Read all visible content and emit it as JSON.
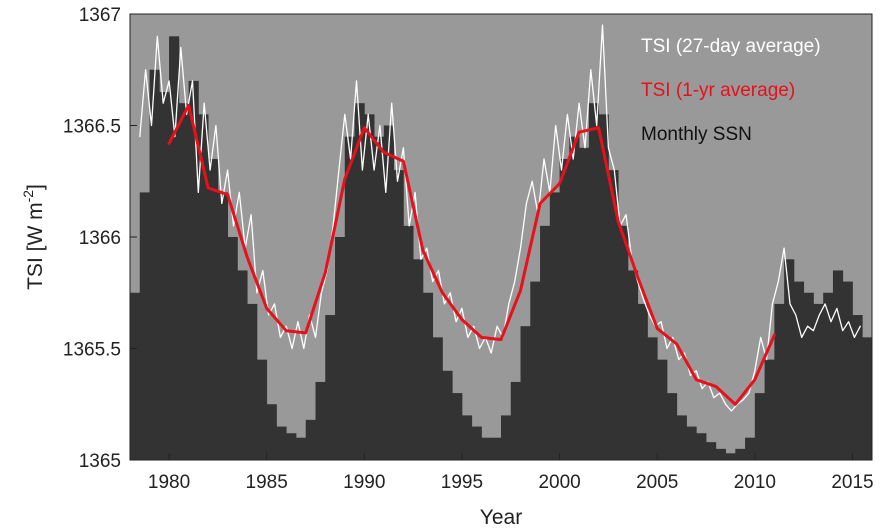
{
  "chart_data": {
    "type": "line",
    "xlabel": "Year",
    "ylabel": "TSI [W m",
    "ylabel_superscript": "-2",
    "ylabel_close": "]",
    "xlim": [
      1978,
      2016
    ],
    "ylim": [
      1365,
      1367
    ],
    "xticks": [
      1980,
      1985,
      1990,
      1995,
      2000,
      2005,
      2010,
      2015
    ],
    "yticks": [
      1365,
      1365.5,
      1366,
      1366.5,
      1367
    ],
    "xtick_labels": [
      "1980",
      "1985",
      "1990",
      "1995",
      "2000",
      "2005",
      "2010",
      "2015"
    ],
    "ytick_labels": [
      "1365",
      "1365.5",
      "1366",
      "1366.5",
      "1367"
    ],
    "legend_position": "top-right",
    "grid": false,
    "colors": {
      "background": "#999999",
      "ssn": "#333333",
      "tsi27": "#ffffff",
      "tsi1yr": "#e8101a"
    },
    "series": [
      {
        "name": "TSI (27-day average)",
        "style": "thin-line",
        "x": [
          1978.5,
          1978.8,
          1979.1,
          1979.4,
          1979.7,
          1980.0,
          1980.3,
          1980.6,
          1980.9,
          1981.2,
          1981.5,
          1981.8,
          1982.1,
          1982.4,
          1982.7,
          1983.0,
          1983.3,
          1983.6,
          1983.9,
          1984.2,
          1984.5,
          1984.8,
          1985.1,
          1985.4,
          1985.7,
          1986.0,
          1986.3,
          1986.6,
          1986.9,
          1987.2,
          1987.5,
          1987.8,
          1988.1,
          1988.4,
          1988.7,
          1989.0,
          1989.3,
          1989.6,
          1989.9,
          1990.2,
          1990.5,
          1990.8,
          1991.1,
          1991.4,
          1991.7,
          1992.0,
          1992.3,
          1992.6,
          1992.9,
          1993.2,
          1993.5,
          1993.8,
          1994.1,
          1994.4,
          1994.7,
          1995.0,
          1995.3,
          1995.6,
          1995.9,
          1996.2,
          1996.5,
          1996.8,
          1997.1,
          1997.4,
          1997.7,
          1998.0,
          1998.3,
          1998.6,
          1998.9,
          1999.2,
          1999.5,
          1999.8,
          2000.1,
          2000.4,
          2000.7,
          2001.0,
          2001.3,
          2001.6,
          2001.9,
          2002.2,
          2002.5,
          2002.8,
          2003.1,
          2003.4,
          2003.7,
          2004.0,
          2004.3,
          2004.6,
          2004.9,
          2005.2,
          2005.5,
          2005.8,
          2006.1,
          2006.4,
          2006.7,
          2007.0,
          2007.3,
          2007.6,
          2007.9,
          2008.2,
          2008.5,
          2008.8,
          2009.1,
          2009.4,
          2009.7,
          2010.0,
          2010.3,
          2010.6,
          2010.9,
          2011.2,
          2011.5,
          2011.8,
          2012.1,
          2012.4,
          2012.7,
          2013.0,
          2013.3,
          2013.6,
          2013.9,
          2014.2,
          2014.5,
          2014.8,
          2015.1,
          2015.4
        ],
        "values": [
          1366.45,
          1366.75,
          1366.5,
          1366.9,
          1366.6,
          1366.7,
          1366.45,
          1366.85,
          1366.55,
          1366.7,
          1366.2,
          1366.6,
          1366.3,
          1366.5,
          1366.15,
          1366.3,
          1366.05,
          1366.2,
          1365.95,
          1366.1,
          1365.75,
          1365.85,
          1365.65,
          1365.7,
          1365.55,
          1365.6,
          1365.5,
          1365.62,
          1365.5,
          1365.65,
          1365.55,
          1365.75,
          1365.85,
          1366.05,
          1366.3,
          1366.55,
          1366.35,
          1366.7,
          1366.3,
          1366.55,
          1366.3,
          1366.5,
          1366.2,
          1366.6,
          1366.25,
          1366.4,
          1366.05,
          1366.2,
          1365.9,
          1365.95,
          1365.8,
          1365.85,
          1365.7,
          1365.75,
          1365.62,
          1365.68,
          1365.55,
          1365.6,
          1365.5,
          1365.55,
          1365.48,
          1365.6,
          1365.55,
          1365.7,
          1365.8,
          1365.95,
          1366.15,
          1366.25,
          1366.1,
          1366.35,
          1366.2,
          1366.5,
          1366.3,
          1366.55,
          1366.35,
          1366.6,
          1366.4,
          1366.75,
          1366.5,
          1366.95,
          1366.4,
          1366.3,
          1366.05,
          1366.1,
          1365.9,
          1365.8,
          1365.72,
          1365.65,
          1365.6,
          1365.62,
          1365.5,
          1365.55,
          1365.45,
          1365.48,
          1365.38,
          1365.4,
          1365.32,
          1365.35,
          1365.28,
          1365.3,
          1365.25,
          1365.22,
          1365.25,
          1365.27,
          1365.3,
          1365.4,
          1365.55,
          1365.45,
          1365.7,
          1365.8,
          1365.95,
          1365.7,
          1365.65,
          1365.55,
          1365.6,
          1365.58,
          1365.65,
          1365.7,
          1365.62,
          1365.68,
          1365.58,
          1365.62,
          1365.55,
          1365.6
        ]
      },
      {
        "name": "TSI (1-yr average)",
        "style": "thick-line",
        "x": [
          1980,
          1981,
          1982,
          1983,
          1984,
          1985,
          1986,
          1987,
          1988,
          1989,
          1990,
          1991,
          1992,
          1993,
          1994,
          1995,
          1996,
          1997,
          1998,
          1999,
          2000,
          2001,
          2002,
          2003,
          2004,
          2005,
          2006,
          2007,
          2008,
          2009,
          2010,
          2011
        ],
        "values": [
          1366.42,
          1366.59,
          1366.22,
          1366.19,
          1365.91,
          1365.68,
          1365.58,
          1365.57,
          1365.84,
          1366.26,
          1366.49,
          1366.38,
          1366.34,
          1365.94,
          1365.75,
          1365.63,
          1365.55,
          1365.54,
          1365.76,
          1366.15,
          1366.24,
          1366.47,
          1366.49,
          1366.07,
          1365.82,
          1365.59,
          1365.52,
          1365.36,
          1365.33,
          1365.25,
          1365.36,
          1365.56
        ]
      },
      {
        "name": "Monthly SSN",
        "style": "bars",
        "x": [
          1978.0,
          1978.5,
          1979.0,
          1979.5,
          1980.0,
          1980.5,
          1981.0,
          1981.5,
          1982.0,
          1982.5,
          1983.0,
          1983.5,
          1984.0,
          1984.5,
          1985.0,
          1985.5,
          1986.0,
          1986.5,
          1987.0,
          1987.5,
          1988.0,
          1988.5,
          1989.0,
          1989.5,
          1990.0,
          1990.5,
          1991.0,
          1991.5,
          1992.0,
          1992.5,
          1993.0,
          1993.5,
          1994.0,
          1994.5,
          1995.0,
          1995.5,
          1996.0,
          1996.5,
          1997.0,
          1997.5,
          1998.0,
          1998.5,
          1999.0,
          1999.5,
          2000.0,
          2000.5,
          2001.0,
          2001.5,
          2002.0,
          2002.5,
          2003.0,
          2003.5,
          2004.0,
          2004.5,
          2005.0,
          2005.5,
          2006.0,
          2006.5,
          2007.0,
          2007.5,
          2008.0,
          2008.5,
          2009.0,
          2009.5,
          2010.0,
          2010.5,
          2011.0,
          2011.5,
          2012.0,
          2012.5,
          2013.0,
          2013.5,
          2014.0,
          2014.5,
          2015.0,
          2015.5
        ],
        "values": [
          1365.75,
          1366.2,
          1366.75,
          1366.65,
          1366.9,
          1366.6,
          1366.7,
          1366.55,
          1366.35,
          1366.2,
          1366.0,
          1365.85,
          1365.7,
          1365.45,
          1365.25,
          1365.15,
          1365.12,
          1365.1,
          1365.18,
          1365.35,
          1365.65,
          1366.0,
          1366.45,
          1366.6,
          1366.55,
          1366.45,
          1366.5,
          1366.3,
          1366.05,
          1365.9,
          1365.75,
          1365.55,
          1365.4,
          1365.3,
          1365.2,
          1365.15,
          1365.1,
          1365.1,
          1365.2,
          1365.35,
          1365.6,
          1365.8,
          1366.05,
          1366.2,
          1366.35,
          1366.45,
          1366.4,
          1366.6,
          1366.55,
          1366.3,
          1366.05,
          1365.85,
          1365.7,
          1365.55,
          1365.45,
          1365.3,
          1365.2,
          1365.15,
          1365.12,
          1365.08,
          1365.05,
          1365.03,
          1365.05,
          1365.1,
          1365.3,
          1365.45,
          1365.7,
          1365.9,
          1365.8,
          1365.75,
          1365.7,
          1365.75,
          1365.85,
          1365.8,
          1365.65,
          1365.55
        ]
      }
    ]
  }
}
